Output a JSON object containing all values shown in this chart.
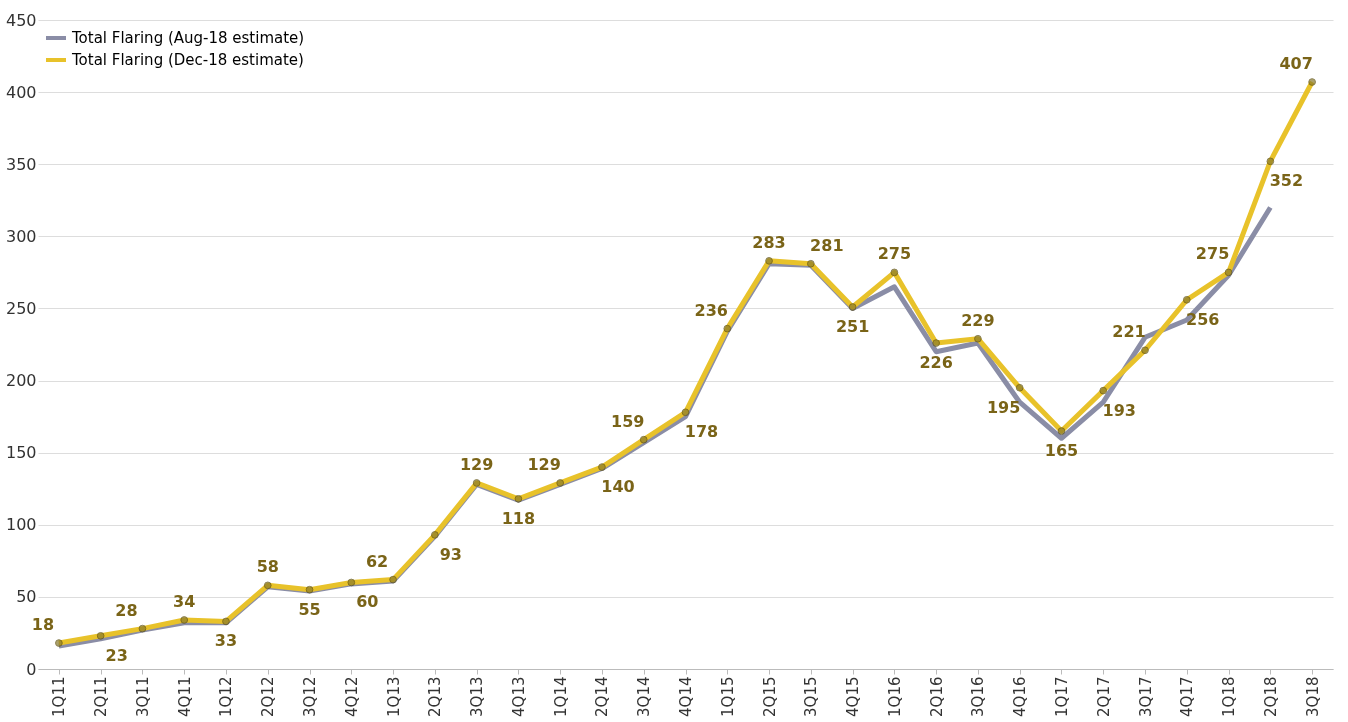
{
  "chart_data": {
    "type": "line",
    "categories": [
      "1Q11",
      "2Q11",
      "3Q11",
      "4Q11",
      "1Q12",
      "2Q12",
      "3Q12",
      "4Q12",
      "1Q13",
      "2Q13",
      "3Q13",
      "4Q13",
      "1Q14",
      "2Q14",
      "3Q14",
      "4Q14",
      "1Q15",
      "2Q15",
      "3Q15",
      "4Q15",
      "1Q16",
      "2Q16",
      "3Q16",
      "4Q16",
      "1Q17",
      "2Q17",
      "3Q17",
      "4Q17",
      "1Q18",
      "2Q18",
      "3Q18"
    ],
    "series": [
      {
        "name": "Total Flaring (Aug-18 estimate)",
        "color": "#8a8da6",
        "marker": "none",
        "values": [
          16,
          21,
          27,
          32,
          32,
          57,
          54,
          59,
          61,
          92,
          128,
          117,
          128,
          139,
          157,
          175,
          234,
          281,
          280,
          250,
          265,
          220,
          226,
          185,
          160,
          185,
          230,
          242,
          273,
          320,
          null
        ]
      },
      {
        "name": "Total Flaring (Dec-18 estimate)",
        "color": "#e8c22a",
        "marker": "circle",
        "values": [
          18,
          23,
          28,
          34,
          33,
          58,
          55,
          60,
          62,
          93,
          129,
          118,
          129,
          140,
          159,
          178,
          236,
          283,
          281,
          251,
          275,
          226,
          229,
          195,
          165,
          193,
          221,
          256,
          275,
          352,
          407
        ],
        "value_labels": [
          "18",
          "23",
          "28",
          "34",
          "33",
          "58",
          "55",
          "60",
          "62",
          "93",
          "129",
          "118",
          "129",
          "140",
          "159",
          "178",
          "236",
          "283",
          "281",
          "251",
          "275",
          "226",
          "229",
          "195",
          "165",
          "193",
          "221",
          "256",
          "275",
          "352",
          "407"
        ]
      }
    ],
    "ylim": [
      0,
      450
    ],
    "yticks": [
      0,
      50,
      100,
      150,
      200,
      250,
      300,
      350,
      400,
      450
    ],
    "grid": "y",
    "legend": "top left",
    "line_style": "solid"
  }
}
